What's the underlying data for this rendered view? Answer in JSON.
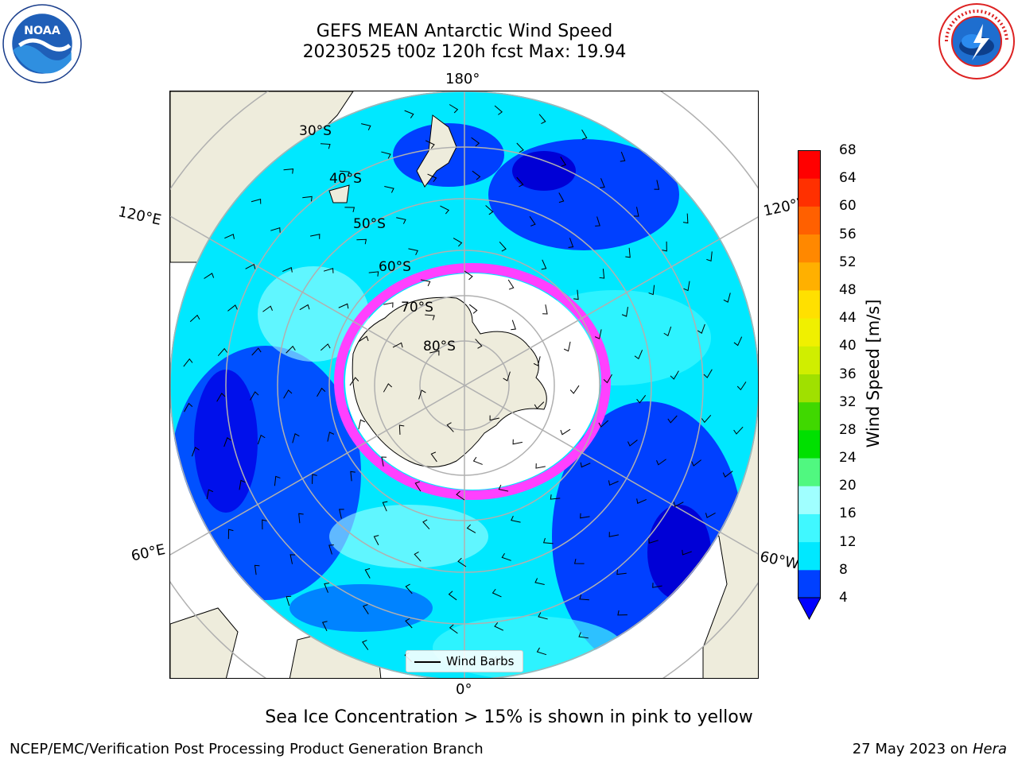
{
  "title": {
    "line1": "GEFS MEAN Antarctic Wind Speed",
    "line2": "20230525 t00z 120h fcst   Max: 19.94"
  },
  "logos": {
    "left": "noaa-logo",
    "right": "nws-logo"
  },
  "map": {
    "projection": "south-polar-stereographic",
    "longitude_labels": {
      "top": "180°",
      "bottom": "0°",
      "upper_left": "120°E",
      "upper_right": "120°W",
      "lower_left": "60°E",
      "lower_right": "60°W"
    },
    "latitude_labels": [
      "30°S",
      "40°S",
      "50°S",
      "60°S",
      "70°S",
      "80°S"
    ],
    "legend": {
      "label": "Wind Barbs"
    }
  },
  "colorbar": {
    "label": "Wind Speed [m/s]",
    "ticks": [
      "4",
      "8",
      "12",
      "16",
      "20",
      "24",
      "28",
      "32",
      "36",
      "40",
      "44",
      "48",
      "52",
      "56",
      "60",
      "64",
      "68"
    ],
    "colors": [
      "#0040ff",
      "#00e8ff",
      "#40f8ff",
      "#a0ffff",
      "#50f880",
      "#00e000",
      "#40d800",
      "#a0e000",
      "#d0ee00",
      "#f0f000",
      "#ffe000",
      "#ffb000",
      "#ff8800",
      "#ff6000",
      "#ff3000",
      "#ff0000"
    ],
    "underflow_color": "#0000ff"
  },
  "note": "Sea Ice Concentration > 15% is shown in pink to yellow",
  "footer": {
    "left": "NCEP/EMC/Verification Post Processing Product Generation Branch",
    "date": "27 May 2023 on",
    "host": "Hera"
  }
}
